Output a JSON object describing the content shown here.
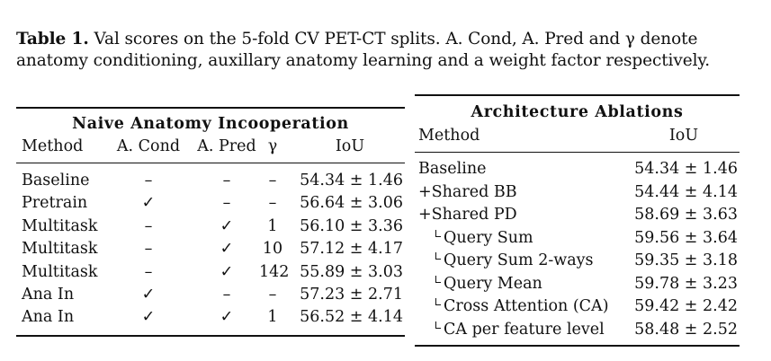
{
  "caption": {
    "label": "Table 1.",
    "text": "Val scores on the 5-fold CV PET-CT splits. A. Cond, A. Pred and γ denote anatomy conditioning, auxillary anatomy learning and a weight factor respectively."
  },
  "left_table": {
    "title": "Naive Anatomy Incooperation",
    "headers": [
      "Method",
      "A. Cond",
      "A. Pred",
      "γ",
      "IoU"
    ],
    "rows": [
      [
        "Baseline",
        "–",
        "–",
        "–",
        "54.34 ± 1.46"
      ],
      [
        "Pretrain",
        "✓",
        "–",
        "–",
        "56.64 ± 3.06"
      ],
      [
        "Multitask",
        "–",
        "✓",
        "1",
        "56.10 ± 3.36"
      ],
      [
        "Multitask",
        "–",
        "✓",
        "10",
        "57.12 ± 4.17"
      ],
      [
        "Multitask",
        "–",
        "✓",
        "142",
        "55.89 ± 3.03"
      ],
      [
        "Ana In",
        "✓",
        "–",
        "–",
        "57.23 ± 2.71"
      ],
      [
        "Ana In",
        "✓",
        "✓",
        "1",
        "56.52 ± 4.14"
      ]
    ]
  },
  "right_table": {
    "title": "Architecture Ablations",
    "headers": [
      "Method",
      "IoU"
    ],
    "rows": [
      {
        "method": "Baseline",
        "sub": false,
        "iou": "54.34 ± 1.46"
      },
      {
        "method": "+Shared BB",
        "sub": false,
        "iou": "54.44 ± 4.14"
      },
      {
        "method": "+Shared PD",
        "sub": false,
        "iou": "58.69 ± 3.63"
      },
      {
        "method": "Query Sum",
        "sub": true,
        "iou": "59.56 ± 3.64"
      },
      {
        "method": "Query Sum 2-ways",
        "sub": true,
        "iou": "59.35 ± 3.18"
      },
      {
        "method": "Query Mean",
        "sub": true,
        "iou": "59.78 ± 3.23"
      },
      {
        "method": "Cross Attention (CA)",
        "sub": true,
        "iou": "59.42 ± 2.42"
      },
      {
        "method": "CA per feature level",
        "sub": true,
        "iou": "58.48 ± 2.52"
      }
    ]
  }
}
